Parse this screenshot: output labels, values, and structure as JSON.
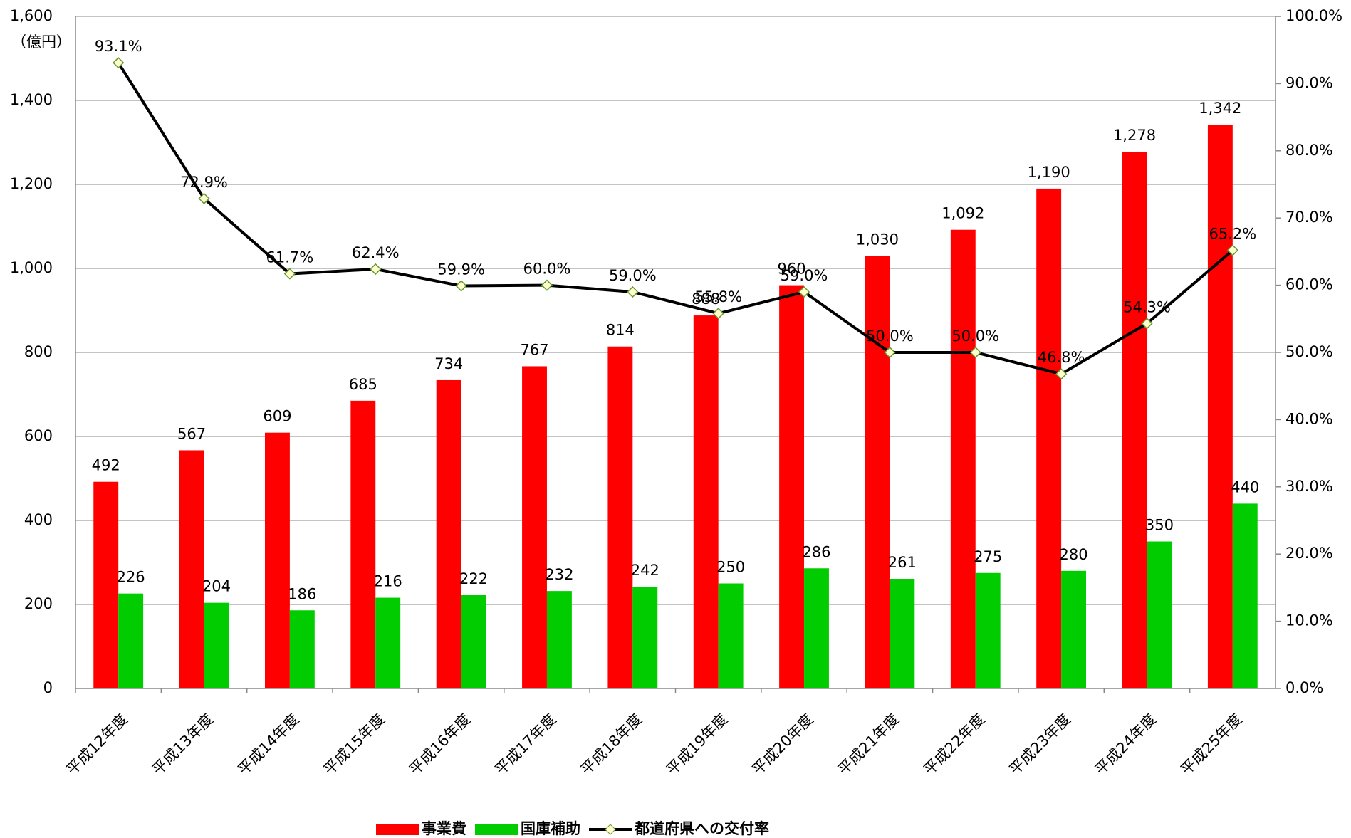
{
  "chart_data": {
    "type": "bar-line",
    "y_unit_label": "（億円）",
    "categories": [
      "平成12年度",
      "平成13年度",
      "平成14年度",
      "平成15年度",
      "平成16年度",
      "平成17年度",
      "平成18年度",
      "平成19年度",
      "平成20年度",
      "平成21年度",
      "平成22年度",
      "平成23年度",
      "平成24年度",
      "平成25年度"
    ],
    "series": [
      {
        "name": "事業費",
        "type": "bar",
        "color": "#ff0000",
        "values": [
          492,
          567,
          609,
          685,
          734,
          767,
          814,
          888,
          960,
          1030,
          1092,
          1190,
          1278,
          1342
        ],
        "value_labels": [
          "492",
          "567",
          "609",
          "685",
          "734",
          "767",
          "814",
          "888",
          "960",
          "1,030",
          "1,092",
          "1,190",
          "1,278",
          "1,342"
        ]
      },
      {
        "name": "国庫補助",
        "type": "bar",
        "color": "#00cc00",
        "values": [
          226,
          204,
          186,
          216,
          222,
          232,
          242,
          250,
          286,
          261,
          275,
          280,
          350,
          440
        ]
      },
      {
        "name": "都道府県への交付率",
        "type": "line",
        "axis": "y2",
        "color": "#000000",
        "values": [
          93.1,
          72.9,
          61.7,
          62.4,
          59.9,
          60.0,
          59.0,
          55.8,
          59.0,
          50.0,
          50.0,
          46.8,
          54.3,
          65.2
        ],
        "value_labels": [
          "93.1%",
          "72.9%",
          "61.7%",
          "62.4%",
          "59.9%",
          "60.0%",
          "59.0%",
          "55.8%",
          "59.0%",
          "50.0%",
          "50.0%",
          "46.8%",
          "54.3%",
          "65.2%"
        ]
      }
    ],
    "ylim": [
      0,
      1600
    ],
    "yticks": [
      0,
      200,
      400,
      600,
      800,
      {
        "value": 1000,
        "label": "1,000"
      },
      {
        "value": 1200,
        "label": "1,200"
      },
      {
        "value": 1400,
        "label": "1,400"
      },
      {
        "value": 1600,
        "label": "1,600"
      }
    ],
    "y2lim": [
      0,
      100
    ],
    "y2ticks": [
      {
        "value": 0,
        "label": "0.0%"
      },
      {
        "value": 10,
        "label": "10.0%"
      },
      {
        "value": 20,
        "label": "20.0%"
      },
      {
        "value": 30,
        "label": "30.0%"
      },
      {
        "value": 40,
        "label": "40.0%"
      },
      {
        "value": 50,
        "label": "50.0%"
      },
      {
        "value": 60,
        "label": "60.0%"
      },
      {
        "value": 70,
        "label": "70.0%"
      },
      {
        "value": 80,
        "label": "80.0%"
      },
      {
        "value": 90,
        "label": "90.0%"
      },
      {
        "value": 100,
        "label": "100.0%"
      }
    ],
    "grid": true,
    "legend": "bottom"
  }
}
